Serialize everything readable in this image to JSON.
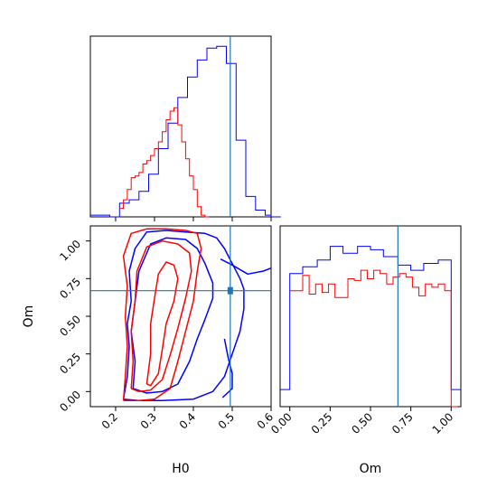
{
  "chart_data": {
    "type": "corner",
    "parameters": [
      "H0",
      "Om"
    ],
    "truth": {
      "H0": 0.495,
      "Om": 0.67
    },
    "colors": {
      "run_a": "#0000ff",
      "run_b": "#ff0000",
      "truth": "#1f77b4"
    },
    "grid": false,
    "panels": [
      {
        "id": "hist-H0",
        "type": "histogram-step",
        "x_range": [
          0.135,
          0.6
        ],
        "xticks": [
          0.2,
          0.3,
          0.4,
          0.5,
          0.6
        ],
        "series": [
          {
            "color": "#0000ff",
            "x": [
              0.135,
              0.16,
              0.185,
              0.21,
              0.235,
              0.26,
              0.285,
              0.31,
              0.335,
              0.36,
              0.385,
              0.41,
              0.435,
              0.46,
              0.485,
              0.51,
              0.535,
              0.56,
              0.585,
              0.6
            ],
            "values": [
              0.01,
              0.01,
              0.0,
              0.08,
              0.1,
              0.15,
              0.25,
              0.4,
              0.55,
              0.7,
              0.82,
              0.92,
              0.99,
              1.0,
              0.9,
              0.45,
              0.12,
              0.04,
              0.01,
              0.0
            ]
          },
          {
            "color": "#ff0000",
            "x": [
              0.21,
              0.22,
              0.23,
              0.24,
              0.25,
              0.26,
              0.27,
              0.28,
              0.29,
              0.3,
              0.31,
              0.32,
              0.33,
              0.34,
              0.35,
              0.36,
              0.37,
              0.38,
              0.39,
              0.4,
              0.41,
              0.42,
              0.43
            ],
            "values": [
              0.05,
              0.1,
              0.16,
              0.23,
              0.24,
              0.26,
              0.31,
              0.33,
              0.36,
              0.4,
              0.44,
              0.5,
              0.57,
              0.62,
              0.64,
              0.54,
              0.44,
              0.34,
              0.24,
              0.16,
              0.06,
              0.01,
              0.0
            ]
          }
        ]
      },
      {
        "id": "hist-Om",
        "type": "histogram-step",
        "x_range": [
          -0.06,
          1.06
        ],
        "xticks": [
          0.0,
          0.25,
          0.5,
          0.75,
          1.0
        ],
        "xtick_labels": [
          "0.00",
          "0.25",
          "0.50",
          "0.75",
          "1.00"
        ],
        "series": [
          {
            "color": "#0000ff",
            "x": [
              -0.06,
              0.0,
              0.08,
              0.17,
              0.25,
              0.33,
              0.42,
              0.5,
              0.58,
              0.67,
              0.75,
              0.83,
              0.92,
              1.0
            ],
            "values": [
              0.1,
              0.78,
              0.82,
              0.86,
              0.94,
              0.9,
              0.94,
              0.92,
              0.88,
              0.83,
              0.8,
              0.84,
              0.86,
              0.1
            ]
          },
          {
            "color": "#ff0000",
            "x": [
              0.0,
              0.04,
              0.08,
              0.12,
              0.16,
              0.2,
              0.24,
              0.28,
              0.32,
              0.36,
              0.4,
              0.44,
              0.48,
              0.52,
              0.56,
              0.6,
              0.64,
              0.68,
              0.72,
              0.76,
              0.8,
              0.84,
              0.88,
              0.92,
              0.96,
              1.0
            ],
            "values": [
              0.68,
              0.68,
              0.77,
              0.66,
              0.72,
              0.67,
              0.72,
              0.64,
              0.64,
              0.75,
              0.74,
              0.8,
              0.75,
              0.8,
              0.78,
              0.72,
              0.76,
              0.78,
              0.76,
              0.7,
              0.65,
              0.72,
              0.7,
              0.72,
              0.68,
              0.0
            ]
          }
        ]
      },
      {
        "id": "contour-H0-Om",
        "type": "contour",
        "x_range": [
          0.135,
          0.6
        ],
        "y_range": [
          -0.1,
          1.1
        ],
        "xticks": [
          0.2,
          0.3,
          0.4,
          0.5,
          0.6
        ],
        "yticks": [
          0.0,
          0.25,
          0.5,
          0.75,
          1.0
        ],
        "ytick_labels": [
          "0.00",
          "0.25",
          "0.50",
          "0.75",
          "1.00"
        ],
        "xlabel": "H0",
        "ylabel": "Om",
        "series": [
          {
            "color": "#0000ff",
            "contours": [
              [
                [
                  0.22,
                  -0.05
                ],
                [
                  0.23,
                  0.1
                ],
                [
                  0.235,
                  0.3
                ],
                [
                  0.23,
                  0.45
                ],
                [
                  0.24,
                  0.6
                ],
                [
                  0.235,
                  0.8
                ],
                [
                  0.25,
                  0.95
                ],
                [
                  0.28,
                  1.06
                ],
                [
                  0.33,
                  1.07
                ],
                [
                  0.38,
                  1.06
                ],
                [
                  0.43,
                  1.05
                ],
                [
                  0.46,
                  1.02
                ],
                [
                  0.48,
                  0.95
                ],
                [
                  0.5,
                  0.85
                ],
                [
                  0.52,
                  0.75
                ],
                [
                  0.53,
                  0.68
                ],
                [
                  0.53,
                  0.55
                ],
                [
                  0.52,
                  0.4
                ],
                [
                  0.5,
                  0.25
                ],
                [
                  0.48,
                  0.1
                ],
                [
                  0.45,
                  0.0
                ],
                [
                  0.4,
                  -0.05
                ],
                [
                  0.32,
                  -0.06
                ],
                [
                  0.26,
                  -0.06
                ],
                [
                  0.22,
                  -0.05
                ]
              ],
              [
                [
                  0.245,
                  0.02
                ],
                [
                  0.25,
                  0.2
                ],
                [
                  0.24,
                  0.4
                ],
                [
                  0.25,
                  0.6
                ],
                [
                  0.26,
                  0.8
                ],
                [
                  0.29,
                  0.98
                ],
                [
                  0.33,
                  1.02
                ],
                [
                  0.38,
                  1.01
                ],
                [
                  0.41,
                  0.95
                ],
                [
                  0.43,
                  0.85
                ],
                [
                  0.45,
                  0.72
                ],
                [
                  0.45,
                  0.62
                ],
                [
                  0.43,
                  0.48
                ],
                [
                  0.41,
                  0.35
                ],
                [
                  0.39,
                  0.2
                ],
                [
                  0.36,
                  0.05
                ],
                [
                  0.32,
                  0.0
                ],
                [
                  0.28,
                  -0.01
                ],
                [
                  0.245,
                  0.02
                ]
              ],
              [
                [
                  0.47,
                  0.88
                ],
                [
                  0.5,
                  0.84
                ],
                [
                  0.54,
                  0.78
                ],
                [
                  0.58,
                  0.8
                ],
                [
                  0.6,
                  0.82
                ]
              ],
              [
                [
                  0.475,
                  -0.04
                ],
                [
                  0.5,
                  0.02
                ],
                [
                  0.5,
                  0.12
                ],
                [
                  0.49,
                  0.22
                ],
                [
                  0.48,
                  0.35
                ]
              ]
            ]
          },
          {
            "color": "#ff0000",
            "contours": [
              [
                [
                  0.22,
                  -0.06
                ],
                [
                  0.225,
                  0.1
                ],
                [
                  0.23,
                  0.3
                ],
                [
                  0.225,
                  0.5
                ],
                [
                  0.23,
                  0.7
                ],
                [
                  0.22,
                  0.9
                ],
                [
                  0.24,
                  1.05
                ],
                [
                  0.28,
                  1.08
                ],
                [
                  0.33,
                  1.08
                ],
                [
                  0.38,
                  1.07
                ],
                [
                  0.41,
                  1.05
                ],
                [
                  0.42,
                  0.95
                ],
                [
                  0.41,
                  0.8
                ],
                [
                  0.4,
                  0.6
                ],
                [
                  0.38,
                  0.4
                ],
                [
                  0.36,
                  0.2
                ],
                [
                  0.34,
                  0.02
                ],
                [
                  0.3,
                  -0.05
                ],
                [
                  0.26,
                  -0.06
                ],
                [
                  0.22,
                  -0.06
                ]
              ],
              [
                [
                  0.24,
                  0.02
                ],
                [
                  0.245,
                  0.2
                ],
                [
                  0.24,
                  0.4
                ],
                [
                  0.25,
                  0.6
                ],
                [
                  0.255,
                  0.8
                ],
                [
                  0.28,
                  0.96
                ],
                [
                  0.32,
                  1.0
                ],
                [
                  0.36,
                  0.98
                ],
                [
                  0.39,
                  0.92
                ],
                [
                  0.395,
                  0.8
                ],
                [
                  0.38,
                  0.62
                ],
                [
                  0.36,
                  0.42
                ],
                [
                  0.34,
                  0.24
                ],
                [
                  0.32,
                  0.08
                ],
                [
                  0.29,
                  0.01
                ],
                [
                  0.26,
                  0.0
                ],
                [
                  0.24,
                  0.02
                ]
              ],
              [
                [
                  0.28,
                  0.05
                ],
                [
                  0.29,
                  0.25
                ],
                [
                  0.29,
                  0.45
                ],
                [
                  0.3,
                  0.62
                ],
                [
                  0.31,
                  0.78
                ],
                [
                  0.33,
                  0.86
                ],
                [
                  0.35,
                  0.84
                ],
                [
                  0.36,
                  0.75
                ],
                [
                  0.35,
                  0.6
                ],
                [
                  0.33,
                  0.45
                ],
                [
                  0.32,
                  0.28
                ],
                [
                  0.31,
                  0.12
                ],
                [
                  0.29,
                  0.04
                ],
                [
                  0.28,
                  0.05
                ]
              ]
            ]
          }
        ]
      }
    ]
  }
}
